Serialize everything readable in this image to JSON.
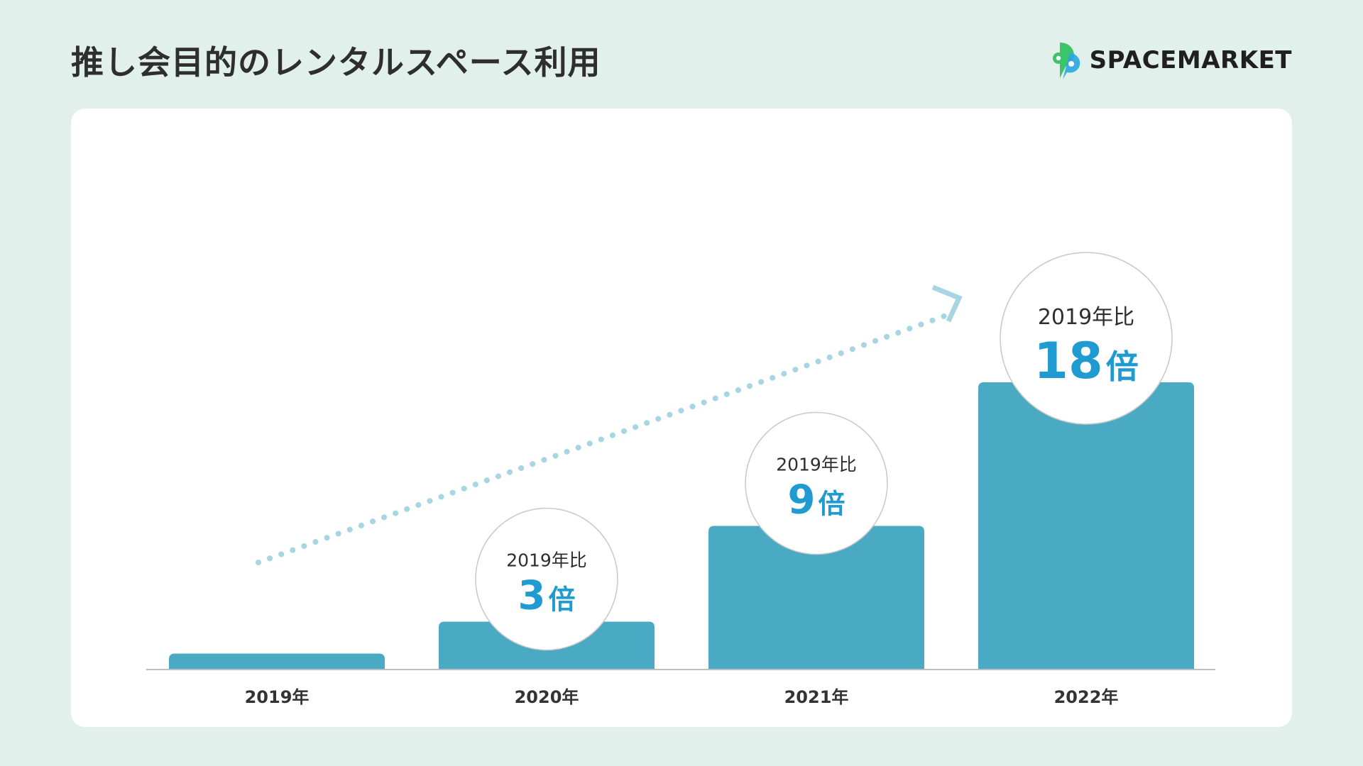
{
  "title": "推し会目的のレンタルスペース利用",
  "logo": {
    "text": "SPACEMARKET"
  },
  "colors": {
    "bar": "#4aa9c3",
    "accent": "#1f9bd1",
    "trend": "#a7d6e2",
    "background": "#e1f0ea"
  },
  "chart_data": {
    "type": "bar",
    "categories": [
      "2019年",
      "2020年",
      "2021年",
      "2022年"
    ],
    "values": [
      1,
      3,
      9,
      18
    ],
    "ylim": [
      0,
      20
    ],
    "grid": false,
    "annotations": [
      null,
      {
        "label": "2019年比",
        "value": "3",
        "unit": "倍"
      },
      {
        "label": "2019年比",
        "value": "9",
        "unit": "倍"
      },
      {
        "label": "2019年比",
        "value": "18",
        "unit": "倍"
      }
    ]
  }
}
